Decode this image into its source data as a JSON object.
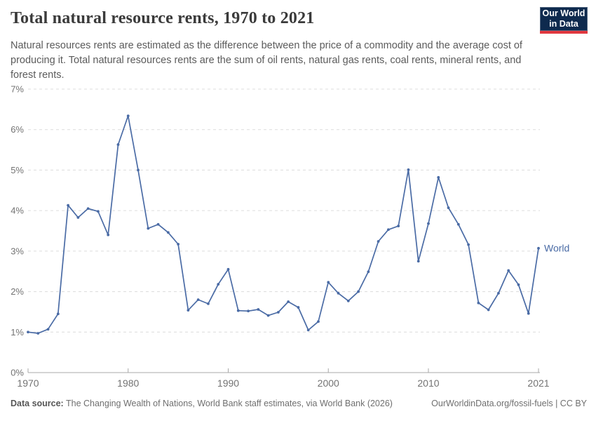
{
  "header": {
    "title": "Total natural resource rents, 1970 to 2021",
    "subtitle": "Natural resources rents are estimated as the difference between the price of a commodity and the average cost of producing it. Total natural resources rents are the sum of oil rents, natural gas rents, coal rents, mineral rents, and forest rents.",
    "logo": {
      "line1": "Our World",
      "line2": "in Data",
      "bg_color": "#0E2A4E",
      "stripe_color": "#E0373F"
    }
  },
  "chart_data": {
    "type": "line",
    "title": "Total natural resource rents, 1970 to 2021",
    "xlabel": "",
    "ylabel": "",
    "xlim": [
      1970,
      2021
    ],
    "ylim": [
      0,
      7
    ],
    "xticks": [
      1970,
      1980,
      1990,
      2000,
      2010,
      2021
    ],
    "yticks": [
      0,
      1,
      2,
      3,
      4,
      5,
      6,
      7
    ],
    "ytick_suffix": "%",
    "grid": "horizontal-dashed",
    "legend": "end-of-line-label",
    "colors": {
      "grid": "#DCDCDC",
      "axis": "#A9A9A9",
      "tick_text": "#737373"
    },
    "series": [
      {
        "name": "World",
        "color": "#4A6BA5",
        "x": [
          1970,
          1971,
          1972,
          1973,
          1974,
          1975,
          1976,
          1977,
          1978,
          1979,
          1980,
          1981,
          1982,
          1983,
          1984,
          1985,
          1986,
          1987,
          1988,
          1989,
          1990,
          1991,
          1992,
          1993,
          1994,
          1995,
          1996,
          1997,
          1998,
          1999,
          2000,
          2001,
          2002,
          2003,
          2004,
          2005,
          2006,
          2007,
          2008,
          2009,
          2010,
          2011,
          2012,
          2013,
          2014,
          2015,
          2016,
          2017,
          2018,
          2019,
          2020,
          2021
        ],
        "values": [
          1.0,
          0.97,
          1.07,
          1.45,
          4.13,
          3.83,
          4.05,
          3.98,
          3.4,
          5.63,
          6.34,
          5.0,
          3.56,
          3.66,
          3.46,
          3.17,
          1.54,
          1.8,
          1.7,
          2.18,
          2.55,
          1.53,
          1.52,
          1.56,
          1.41,
          1.49,
          1.75,
          1.61,
          1.05,
          1.26,
          2.23,
          1.96,
          1.77,
          2.0,
          2.49,
          3.24,
          3.53,
          3.62,
          5.01,
          2.75,
          3.68,
          4.82,
          4.07,
          3.66,
          3.16,
          1.72,
          1.55,
          1.96,
          2.52,
          2.17,
          1.46,
          3.07
        ]
      }
    ]
  },
  "footer": {
    "datasource_label": "Data source:",
    "datasource_text": " The Changing Wealth of Nations, World Bank staff estimates, via World Bank (2026)",
    "link_text": "OurWorldinData.org/fossil-fuels | CC BY"
  }
}
